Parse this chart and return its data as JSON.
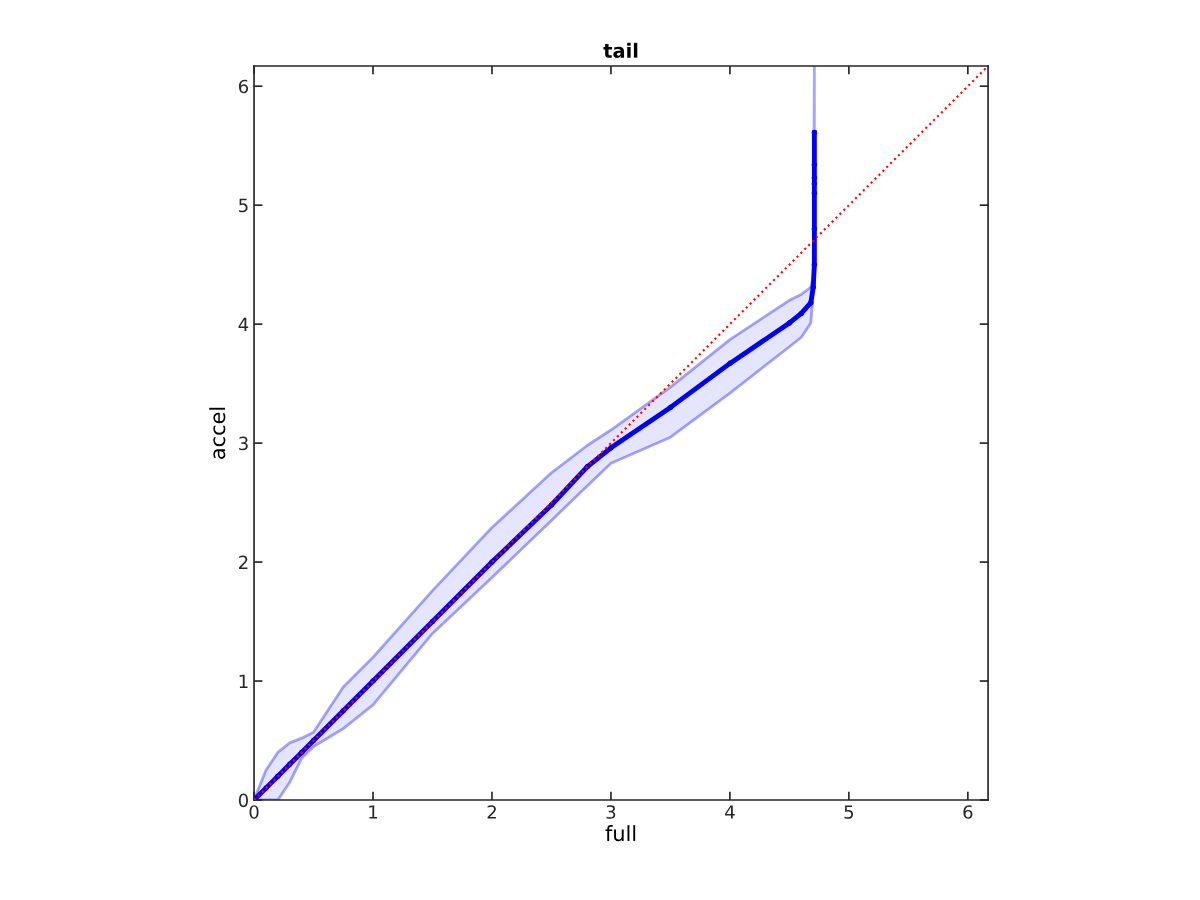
{
  "chart_data": {
    "type": "line",
    "title": "tail",
    "xlabel": "full",
    "ylabel": "accel",
    "xlim": [
      0,
      6.17
    ],
    "ylim": [
      0,
      6.17
    ],
    "xticks": [
      0,
      1,
      2,
      3,
      4,
      5,
      6
    ],
    "yticks": [
      0,
      1,
      2,
      3,
      4,
      5,
      6
    ],
    "grid": false,
    "marker": "circle",
    "series": [
      {
        "color": "#0000ff",
        "line_style": "solid",
        "x": [
          0,
          0.1,
          0.2,
          0.3,
          0.4,
          0.5,
          0.75,
          1,
          1.5,
          2,
          2.5,
          2.8,
          3,
          3.5,
          4,
          4.5,
          4.6,
          4.68,
          4.7,
          4.71,
          4.71,
          4.71,
          4.71,
          4.71,
          4.71,
          4.71
        ],
        "values": [
          0,
          0.1,
          0.2,
          0.3,
          0.4,
          0.5,
          0.75,
          1,
          1.5,
          2,
          2.48,
          2.8,
          2.96,
          3.3,
          3.67,
          4.01,
          4.09,
          4.18,
          4.31,
          4.5,
          4.8,
          5.1,
          5.18,
          5.23,
          5.34,
          5.61
        ],
        "lower": [
          0,
          0,
          0,
          0.15,
          0.35,
          0.45,
          0.6,
          0.8,
          1.4,
          1.87,
          2.35,
          2.64,
          2.83,
          3.05,
          3.42,
          3.81,
          3.89,
          4.01,
          4.26,
          4.31,
          4.31,
          4.31,
          4.31,
          4.31,
          4.31,
          4.31
        ],
        "upper": [
          0,
          0.25,
          0.4,
          0.48,
          0.52,
          0.57,
          0.95,
          1.2,
          1.76,
          2.29,
          2.75,
          2.98,
          3.11,
          3.47,
          3.87,
          4.2,
          4.25,
          4.31,
          4.4,
          6.17,
          6.17,
          6.17,
          6.17,
          6.17,
          6.17,
          6.17
        ]
      },
      {
        "color": "#ff0000",
        "line_style": "dotted",
        "marker": "none",
        "x": [
          0,
          6.17
        ],
        "values": [
          0,
          6.17
        ]
      }
    ]
  }
}
